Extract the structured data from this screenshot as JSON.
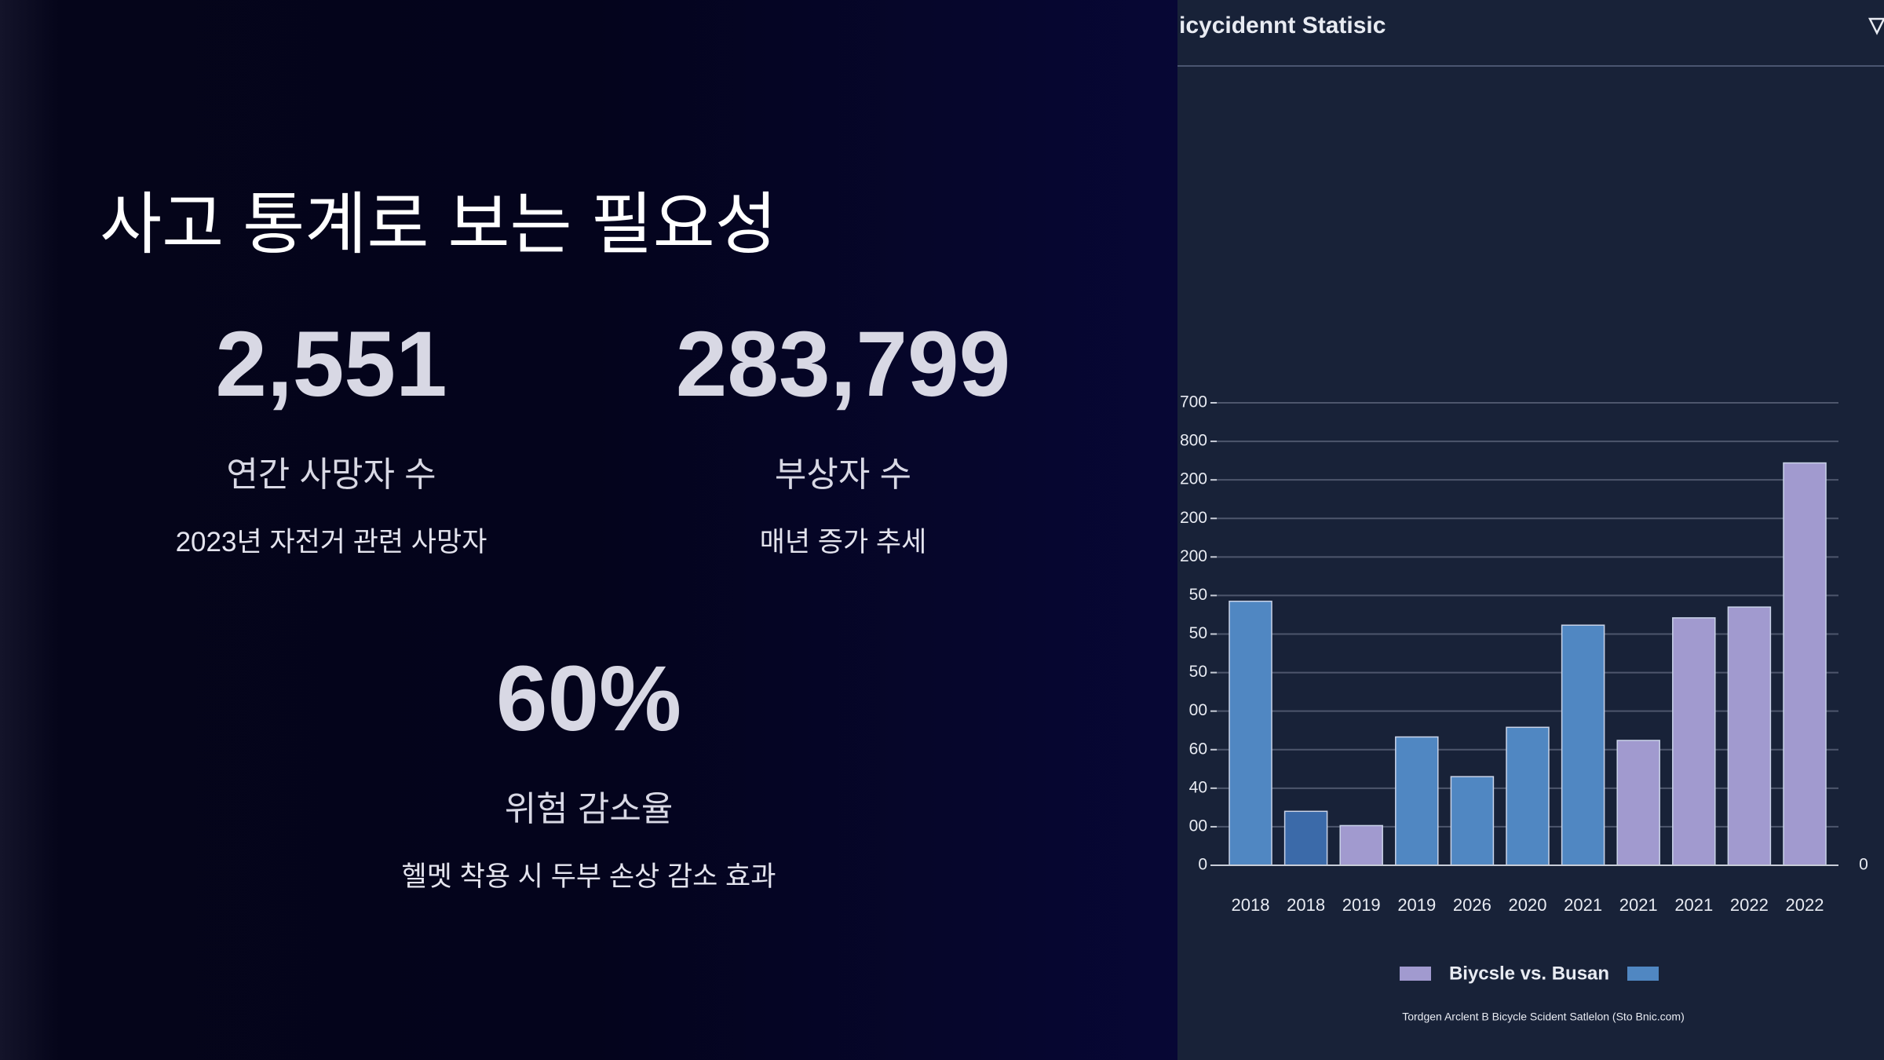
{
  "slide": {
    "title": "사고 통계로 보는 필요성",
    "stats": [
      {
        "value": "2,551",
        "label": "연간 사망자 수",
        "note": "2023년 자전거 관련 사망자"
      },
      {
        "value": "283,799",
        "label": "부상자 수",
        "note": "매년 증가 추세"
      },
      {
        "value": "60%",
        "label": "위험 감소율",
        "note": "헬멧 착용 시 두부 손상 감소 효과"
      }
    ]
  },
  "chart_data": {
    "type": "bar",
    "title": "icycidennt Statisic",
    "categories": [
      "2018",
      "2018",
      "2019",
      "2019",
      "2026",
      "2020",
      "2021",
      "2021",
      "2021",
      "2022",
      "2022"
    ],
    "values": [
      6.85,
      1.4,
      1.03,
      3.33,
      2.3,
      3.58,
      6.23,
      3.24,
      6.42,
      6.7,
      10.44
    ],
    "colors": [
      "#5087c2",
      "#3b6aa9",
      "#a19acf",
      "#5087c2",
      "#5087c2",
      "#5087c2",
      "#5087c2",
      "#a19acf",
      "#a19acf",
      "#a19acf",
      "#a19acf"
    ],
    "ylim": [
      0,
      12
    ],
    "yticks": [
      0,
      {
        "value": 1,
        "label": "00"
      },
      {
        "value": 2,
        "label": "40"
      },
      {
        "value": 3,
        "label": "60"
      },
      {
        "value": 4,
        "label": "00"
      },
      {
        "value": 5,
        "label": "50"
      },
      {
        "value": 6,
        "label": "50"
      },
      {
        "value": 7,
        "label": "50"
      },
      {
        "value": 8,
        "label": "200"
      },
      {
        "value": 9,
        "label": "200"
      },
      {
        "value": 10,
        "label": "200"
      },
      {
        "value": 11,
        "label": "800"
      },
      {
        "value": 12,
        "label": "700"
      }
    ],
    "y2lim": [
      0,
      12
    ],
    "y2ticks": [
      0
    ],
    "grid": true,
    "legend": {
      "label": "Biycsle vs. Busan",
      "colors": [
        "#a19acf",
        "#5087c2"
      ]
    },
    "source": "Tordgen Arclent B Bicycle Scident Satlelon (Sto Bnic.com)"
  }
}
